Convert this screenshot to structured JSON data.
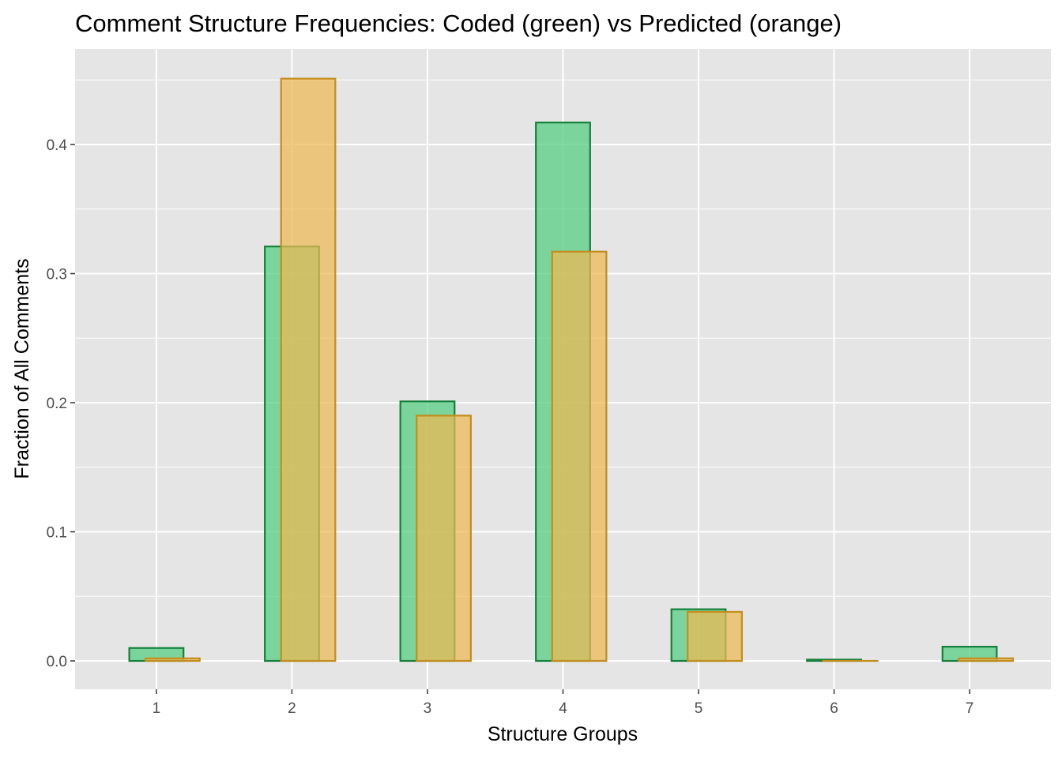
{
  "chart_data": {
    "type": "bar",
    "title": "Comment Structure Frequencies: Coded (green) vs Predicted (orange)",
    "xlabel": "Structure Groups",
    "ylabel": "Fraction of All Comments",
    "categories": [
      "1",
      "2",
      "3",
      "4",
      "5",
      "6",
      "7"
    ],
    "yticks": [
      "0.0",
      "0.1",
      "0.2",
      "0.3",
      "0.4"
    ],
    "ylim": [
      -0.022,
      0.474
    ],
    "grid": true,
    "legend": "none",
    "series": [
      {
        "key": "coded",
        "values": [
          0.01,
          0.321,
          0.201,
          0.417,
          0.04,
          0.001,
          0.011
        ],
        "fill": "#52cd7e",
        "stroke": "#14803c"
      },
      {
        "key": "predicted",
        "values": [
          0.002,
          0.451,
          0.19,
          0.317,
          0.038,
          0.0,
          0.002
        ],
        "fill": "#eeb953",
        "stroke": "#c28d1c"
      }
    ],
    "colors": {
      "panel_background": "#e5e5e5",
      "grid": "#ffffff",
      "tick_text": "#4d4d4d"
    }
  }
}
